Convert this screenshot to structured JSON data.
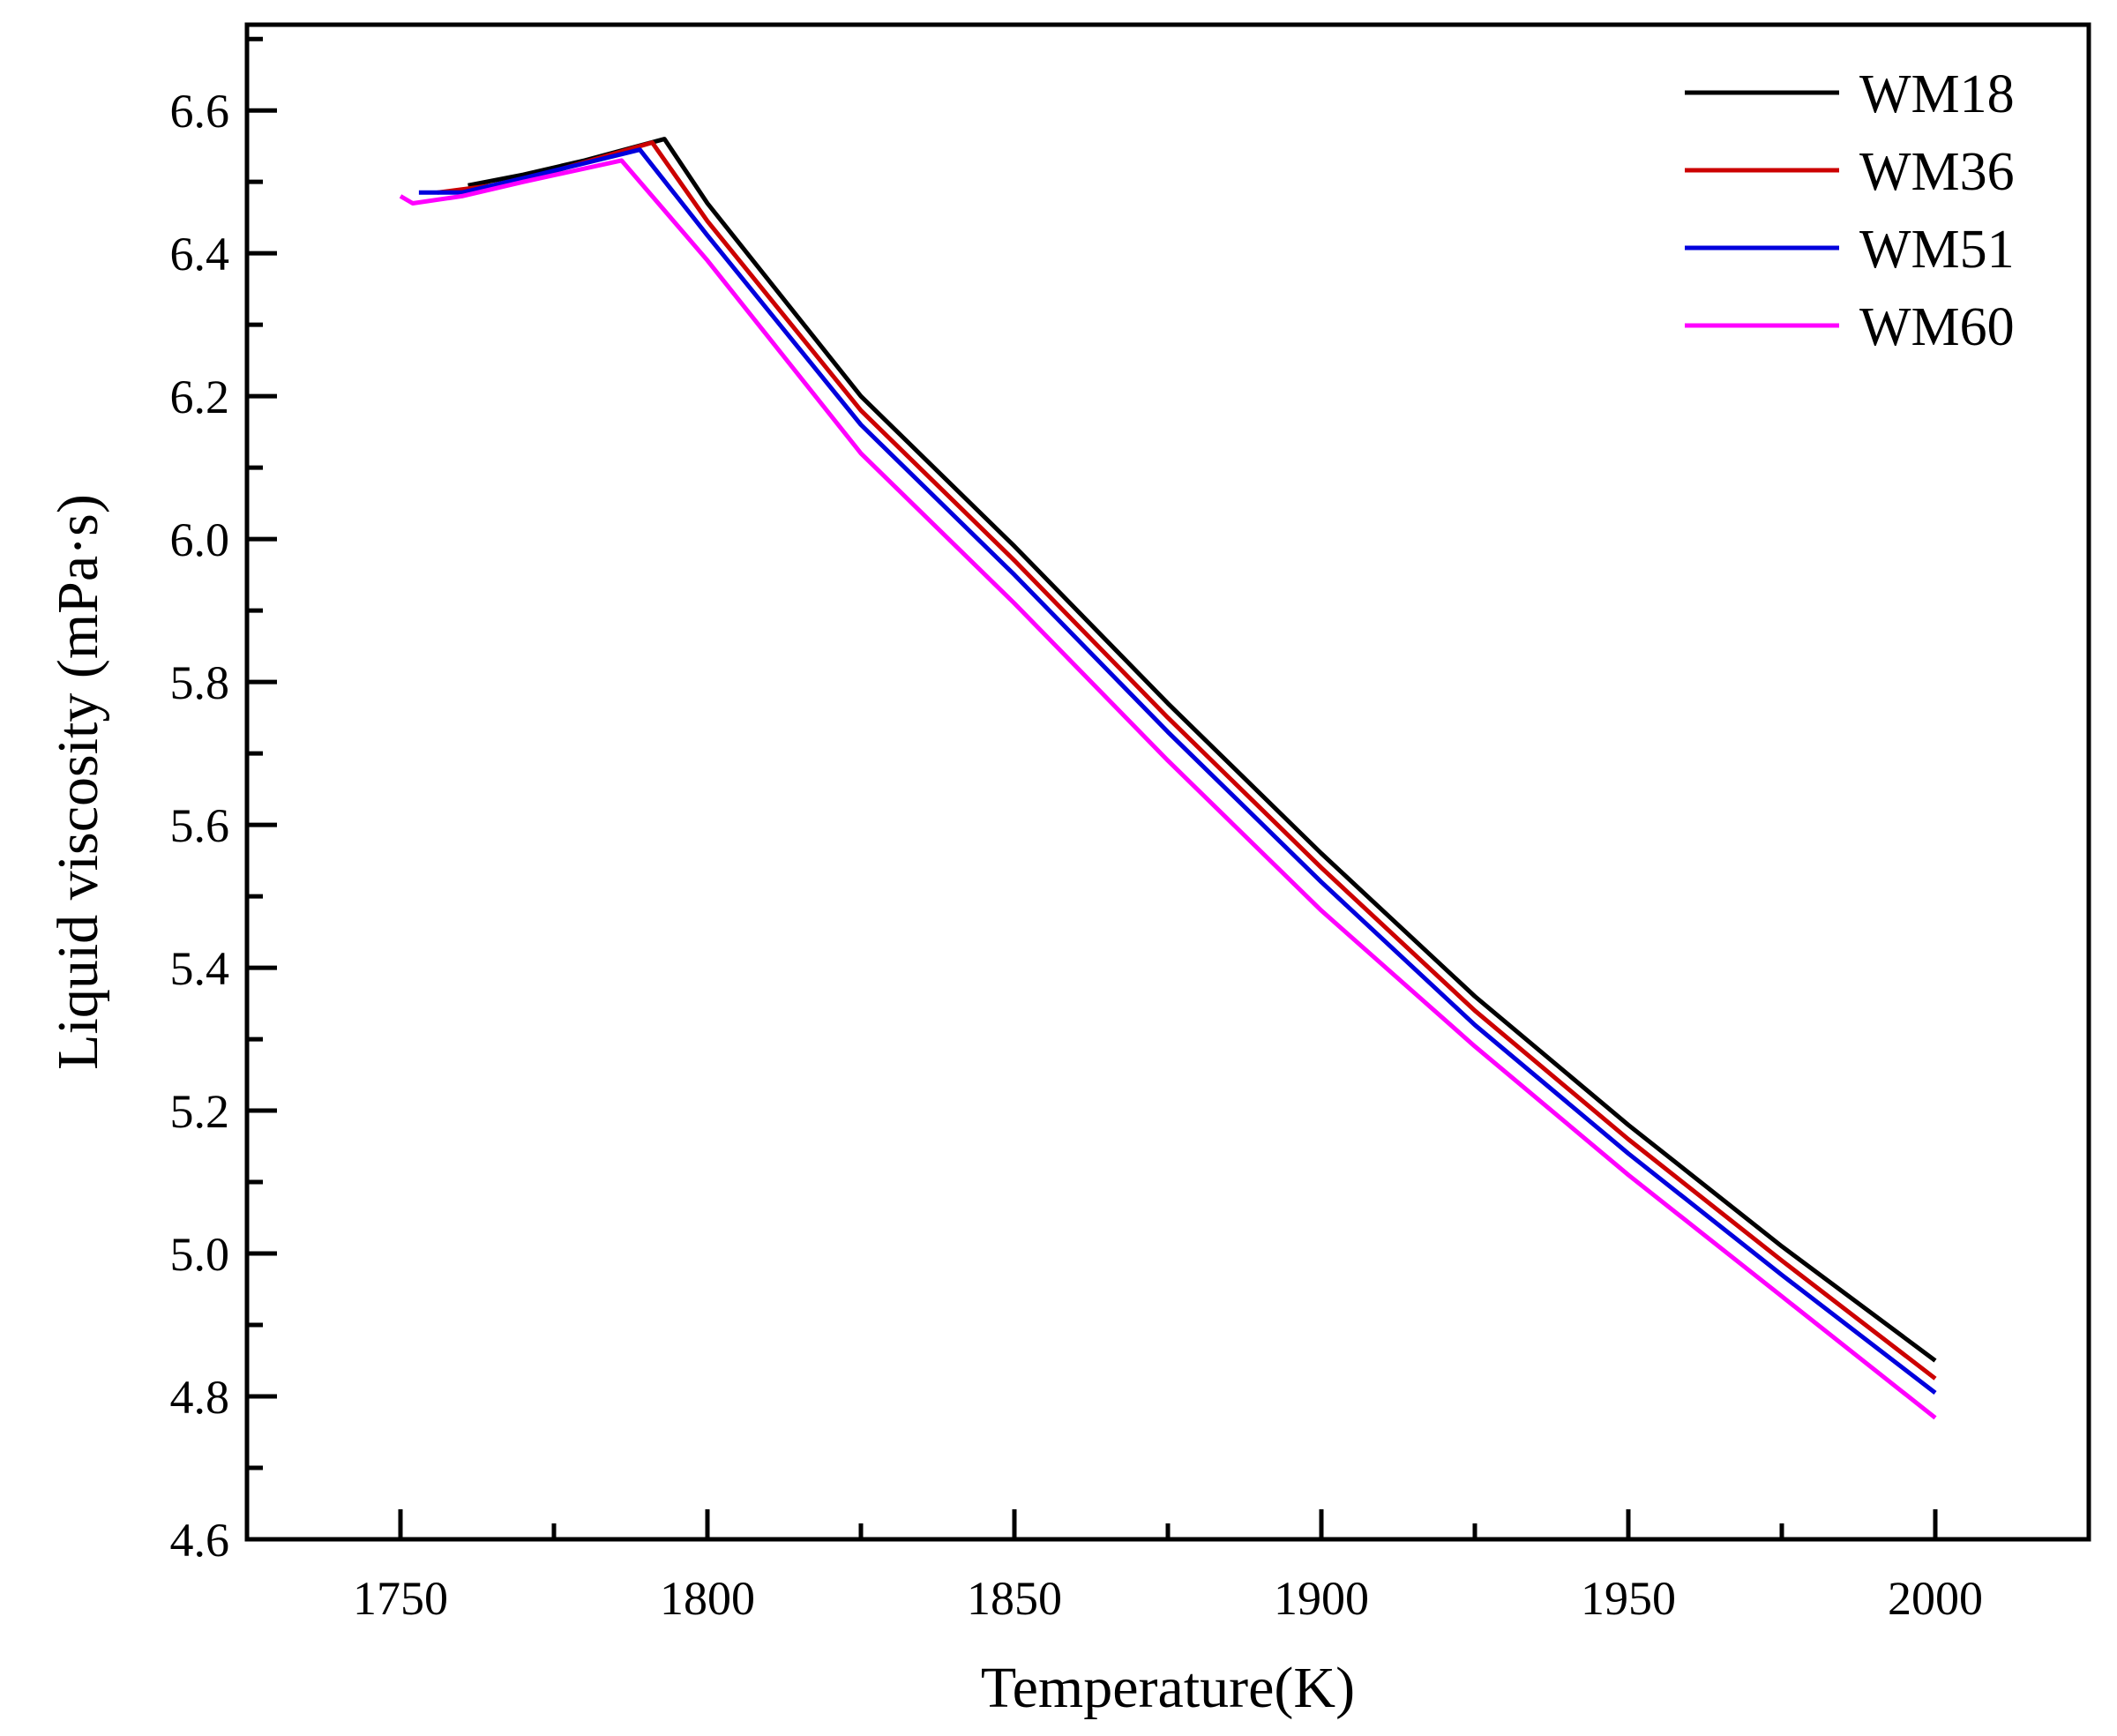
{
  "chart_data": {
    "type": "line",
    "title": "",
    "xlabel": "Temperature(K)",
    "ylabel": "Liquid viscosity (mPa·s)",
    "xlim": [
      1725,
      2025
    ],
    "ylim": [
      4.6,
      6.72
    ],
    "x_ticks": [
      1750,
      1800,
      1850,
      1900,
      1950,
      2000
    ],
    "x_tick_labels": [
      "1750",
      "1800",
      "1850",
      "1900",
      "1950",
      "2000"
    ],
    "y_ticks": [
      4.6,
      4.8,
      5.0,
      5.2,
      5.4,
      5.6,
      5.8,
      6.0,
      6.2,
      6.4,
      6.6
    ],
    "y_tick_labels": [
      "4.6",
      "4.8",
      "5.0",
      "5.2",
      "5.4",
      "5.6",
      "5.8",
      "6.0",
      "6.2",
      "6.4",
      "6.6"
    ],
    "grid": false,
    "legend_position": "top-right",
    "series": [
      {
        "name": "WM18",
        "color": "#000000",
        "x": [
          1761,
          1770,
          1780,
          1793,
          1800,
          1825,
          1850,
          1875,
          1900,
          1925,
          1950,
          1975,
          2000
        ],
        "y": [
          6.495,
          6.51,
          6.53,
          6.56,
          6.47,
          6.2,
          5.99,
          5.77,
          5.56,
          5.36,
          5.18,
          5.01,
          4.85
        ]
      },
      {
        "name": "WM36",
        "color": "#cc0000",
        "x": [
          1756,
          1765,
          1775,
          1791,
          1800,
          1825,
          1850,
          1875,
          1900,
          1925,
          1950,
          1975,
          2000
        ],
        "y": [
          6.485,
          6.495,
          6.515,
          6.555,
          6.445,
          6.18,
          5.97,
          5.75,
          5.54,
          5.34,
          5.16,
          4.99,
          4.825
        ]
      },
      {
        "name": "WM51",
        "color": "#0000dd",
        "x": [
          1753,
          1760,
          1770,
          1789,
          1800,
          1825,
          1850,
          1875,
          1900,
          1925,
          1950,
          1975,
          2000
        ],
        "y": [
          6.485,
          6.485,
          6.505,
          6.545,
          6.425,
          6.16,
          5.95,
          5.73,
          5.52,
          5.32,
          5.14,
          4.97,
          4.805
        ]
      },
      {
        "name": "WM60",
        "color": "#ff00ff",
        "x": [
          1750,
          1752,
          1760,
          1770,
          1786,
          1800,
          1825,
          1850,
          1875,
          1900,
          1925,
          1950,
          1975,
          2000
        ],
        "y": [
          6.48,
          6.47,
          6.48,
          6.5,
          6.53,
          6.39,
          6.12,
          5.91,
          5.69,
          5.48,
          5.29,
          5.11,
          4.94,
          4.77
        ]
      }
    ]
  }
}
